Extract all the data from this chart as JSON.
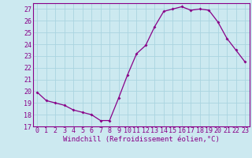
{
  "x": [
    0,
    1,
    2,
    3,
    4,
    5,
    6,
    7,
    8,
    9,
    10,
    11,
    12,
    13,
    14,
    15,
    16,
    17,
    18,
    19,
    20,
    21,
    22,
    23
  ],
  "y": [
    19.9,
    19.2,
    19.0,
    18.8,
    18.4,
    18.2,
    18.0,
    17.5,
    17.5,
    19.4,
    21.4,
    23.2,
    23.9,
    25.5,
    26.8,
    27.0,
    27.2,
    26.9,
    27.0,
    26.9,
    25.9,
    24.5,
    23.5,
    22.5
  ],
  "line_color": "#880088",
  "marker": "D",
  "markersize": 2.0,
  "linewidth": 0.9,
  "xlabel": "Windchill (Refroidissement éolien,°C)",
  "ylim": [
    17,
    27.5
  ],
  "xlim": [
    -0.5,
    23.5
  ],
  "yticks": [
    17,
    18,
    19,
    20,
    21,
    22,
    23,
    24,
    25,
    26,
    27
  ],
  "xticks": [
    0,
    1,
    2,
    3,
    4,
    5,
    6,
    7,
    8,
    9,
    10,
    11,
    12,
    13,
    14,
    15,
    16,
    17,
    18,
    19,
    20,
    21,
    22,
    23
  ],
  "bg_color": "#cce9f0",
  "grid_color": "#aad4e0",
  "spine_color": "#880088",
  "tick_color": "#880088",
  "label_color": "#880088",
  "xlabel_fontsize": 6.5,
  "tick_fontsize": 6.0
}
